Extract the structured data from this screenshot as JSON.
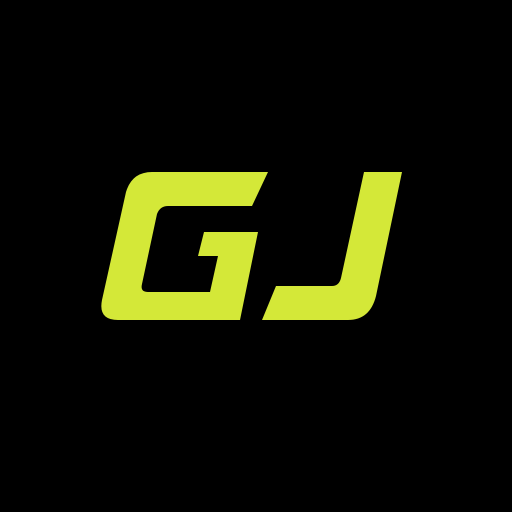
{
  "logo": {
    "text": "GJ",
    "icon": "gj-monogram-logo",
    "color": "#D4E838",
    "background": "#000000"
  }
}
